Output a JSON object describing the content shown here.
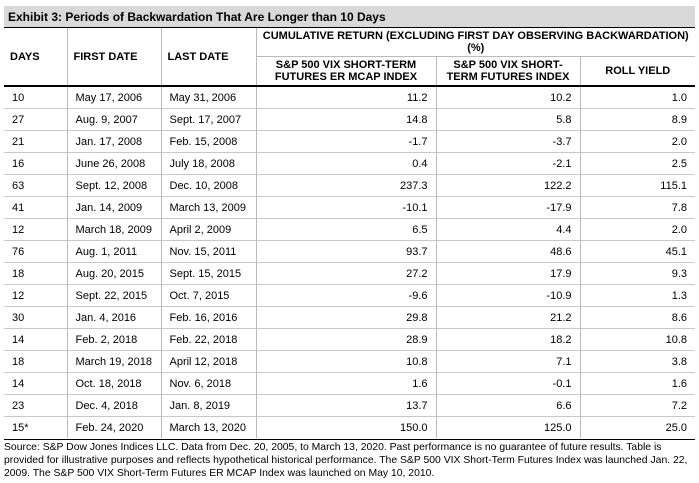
{
  "header": {
    "title": "Exhibit 3: Periods of Backwardation That Are Longer than 10 Days"
  },
  "table": {
    "columns": [
      "DAYS",
      "FIRST DATE",
      "LAST DATE"
    ],
    "group_header": "CUMULATIVE RETURN (EXCLUDING FIRST DAY OBSERVING BACKWARDATION) (%)",
    "sub_columns": [
      "S&P 500 VIX SHORT-TERM FUTURES ER MCAP INDEX",
      "S&P 500 VIX SHORT-TERM FUTURES INDEX",
      "ROLL YIELD"
    ],
    "rows": [
      [
        "10",
        "May 17, 2006",
        "May 31, 2006",
        "11.2",
        "10.2",
        "1.0"
      ],
      [
        "27",
        "Aug. 9, 2007",
        "Sept. 17, 2007",
        "14.8",
        "5.8",
        "8.9"
      ],
      [
        "21",
        "Jan. 17, 2008",
        "Feb. 15, 2008",
        "-1.7",
        "-3.7",
        "2.0"
      ],
      [
        "16",
        "June 26, 2008",
        "July 18, 2008",
        "0.4",
        "-2.1",
        "2.5"
      ],
      [
        "63",
        "Sept. 12, 2008",
        "Dec. 10, 2008",
        "237.3",
        "122.2",
        "115.1"
      ],
      [
        "41",
        "Jan. 14, 2009",
        "March 13, 2009",
        "-10.1",
        "-17.9",
        "7.8"
      ],
      [
        "12",
        "March 18, 2009",
        "April 2, 2009",
        "6.5",
        "4.4",
        "2.0"
      ],
      [
        "76",
        "Aug. 1, 2011",
        "Nov. 15, 2011",
        "93.7",
        "48.6",
        "45.1"
      ],
      [
        "18",
        "Aug. 20, 2015",
        "Sept. 15, 2015",
        "27.2",
        "17.9",
        "9.3"
      ],
      [
        "12",
        "Sept. 22, 2015",
        "Oct. 7, 2015",
        "-9.6",
        "-10.9",
        "1.3"
      ],
      [
        "30",
        "Jan. 4, 2016",
        "Feb. 16, 2016",
        "29.8",
        "21.2",
        "8.6"
      ],
      [
        "14",
        "Feb. 2, 2018",
        "Feb. 22, 2018",
        "28.9",
        "18.2",
        "10.8"
      ],
      [
        "18",
        "March 19, 2018",
        "April 12, 2018",
        "10.8",
        "7.1",
        "3.8"
      ],
      [
        "14",
        "Oct. 18, 2018",
        "Nov. 6, 2018",
        "1.6",
        "-0.1",
        "1.6"
      ],
      [
        "23",
        "Dec. 4, 2018",
        "Jan. 8, 2019",
        "13.7",
        "6.6",
        "7.2"
      ],
      [
        "15*",
        "Feb. 24, 2020",
        "March 13, 2020",
        "150.0",
        "125.0",
        "25.0"
      ]
    ]
  },
  "footer": {
    "source": "Source: S&P Dow Jones Indices LLC. Data from Dec. 20, 2005, to March 13, 2020. Past performance is no guarantee of future results. Table is provided for illustrative purposes and reflects hypothetical historical performance. The S&P 500 VIX Short-Term Futures Index was launched Jan. 22, 2009. The S&P 500 VIX Short-Term Futures ER MCAP Index was launched on May 10, 2010."
  }
}
